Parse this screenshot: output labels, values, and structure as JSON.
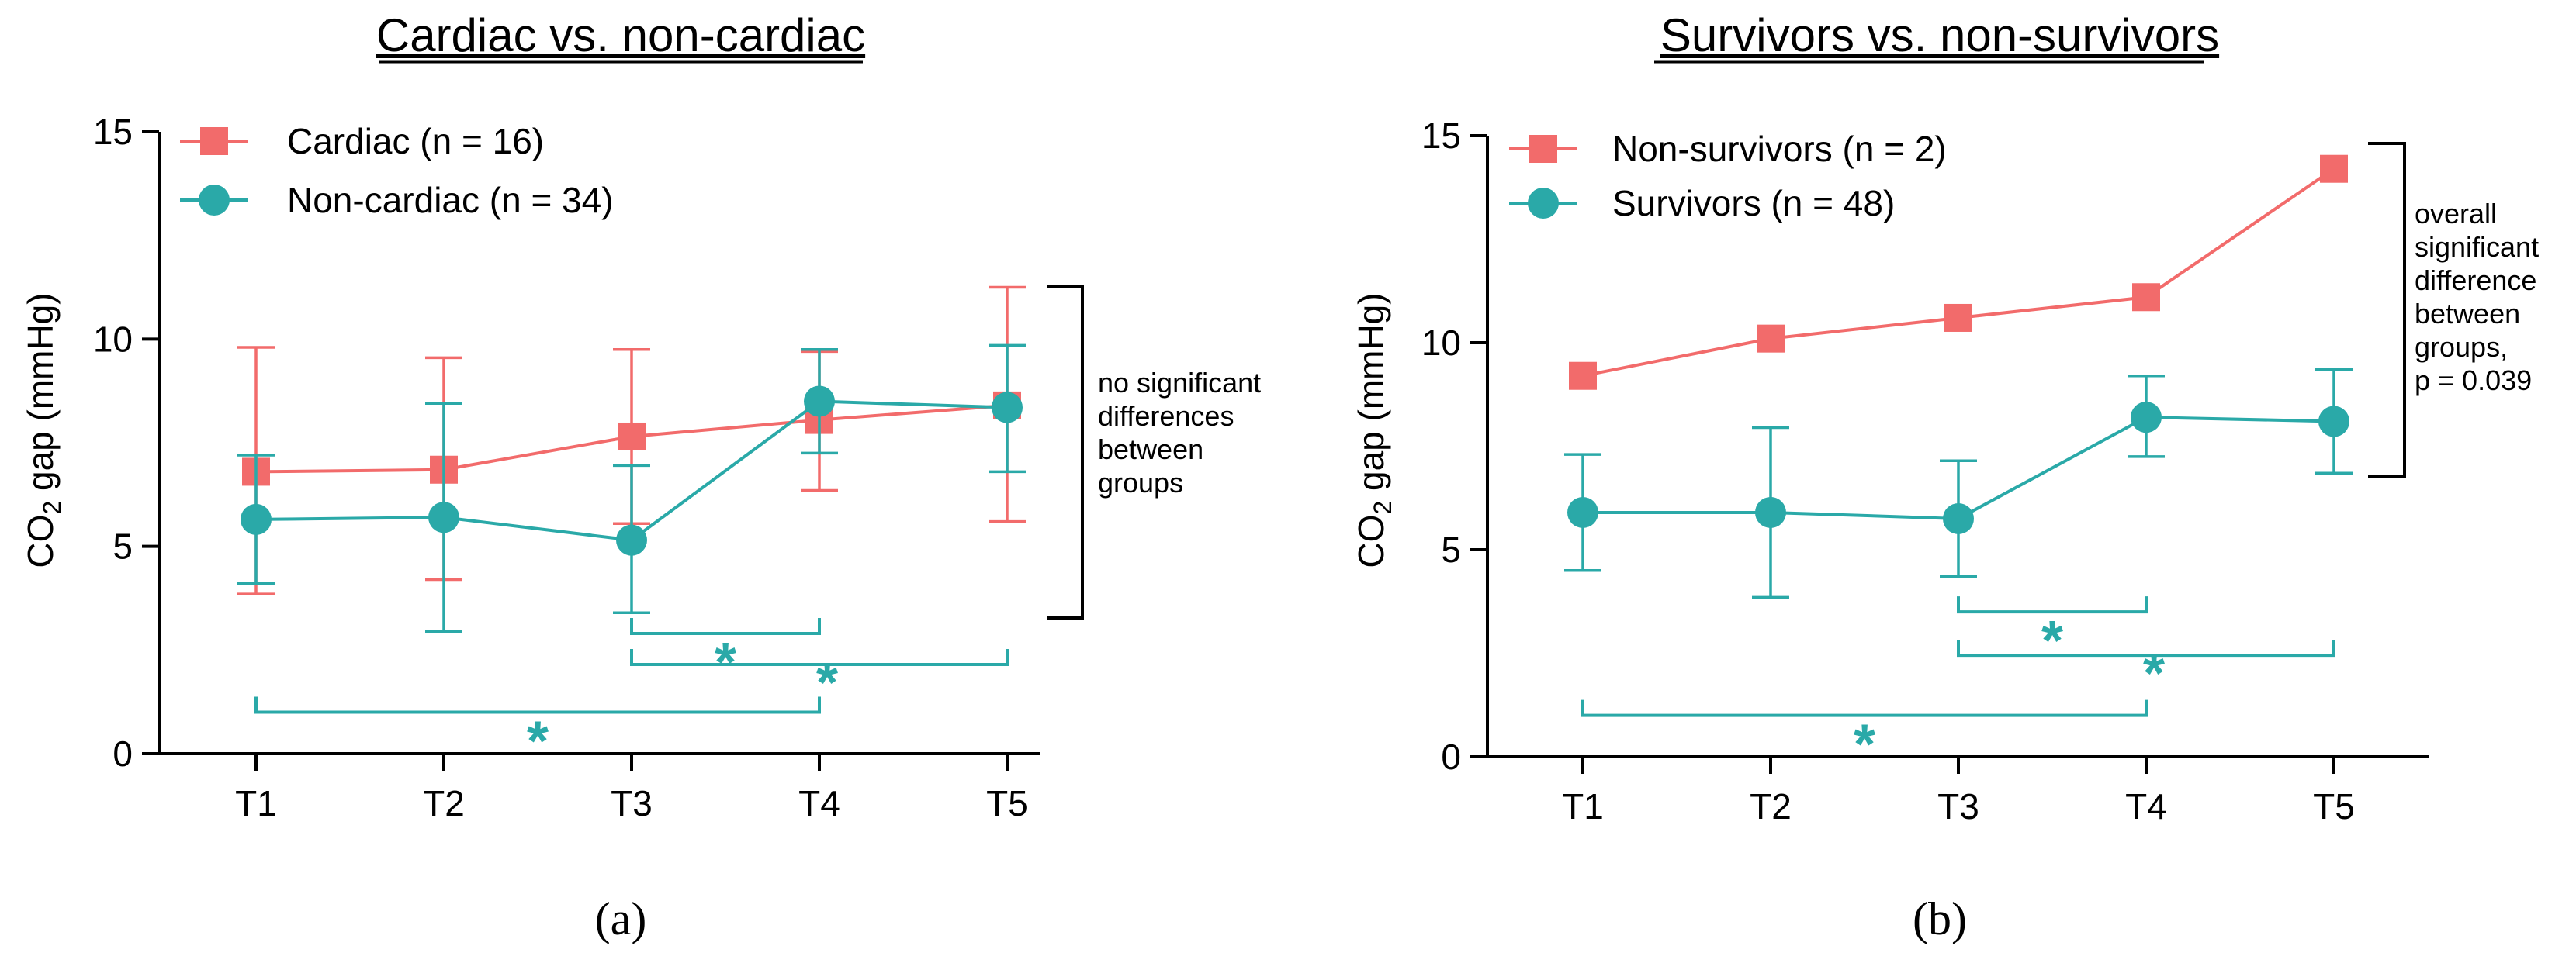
{
  "colors": {
    "red": "#f26b6b",
    "teal": "#2aa9a8",
    "axis": "#000000"
  },
  "chart_data": [
    {
      "type": "line",
      "panel_label": "(a)",
      "title": "Cardiac vs. non-cardiac",
      "ylabel_main": "CO",
      "ylabel_sub": "2",
      "ylabel_rest": " gap (mmHg)",
      "xlabel": "",
      "categories": [
        "T1",
        "T2",
        "T3",
        "T4",
        "T5"
      ],
      "ylim": [
        0,
        15
      ],
      "yticks": [
        "0",
        "5",
        "10",
        "15"
      ],
      "series": [
        {
          "name": "Cardiac (n = 16)",
          "color": "#f26b6b",
          "marker": "square",
          "values": [
            6.8,
            6.85,
            7.65,
            8.05,
            8.4
          ],
          "err_low": [
            3.85,
            4.2,
            5.55,
            6.35,
            5.6
          ],
          "err_high": [
            9.8,
            9.55,
            9.75,
            9.7,
            11.25
          ]
        },
        {
          "name": "Non-cardiac (n = 34)",
          "color": "#2aa9a8",
          "marker": "circle",
          "values": [
            5.65,
            5.7,
            5.15,
            8.5,
            8.35
          ],
          "err_low": [
            4.1,
            2.95,
            3.4,
            7.25,
            6.8
          ],
          "err_high": [
            7.2,
            8.45,
            6.95,
            9.75,
            9.85
          ]
        }
      ],
      "bracket_note": [
        "no significant",
        "differences",
        "between",
        "groups"
      ],
      "significance": [
        {
          "from": "T3",
          "to": "T4",
          "y": 2.9,
          "label": "*"
        },
        {
          "from": "T3",
          "to": "T5",
          "y": 2.15,
          "label": "*"
        },
        {
          "from": "T1",
          "to": "T4",
          "y": 1.0,
          "label": "*"
        }
      ]
    },
    {
      "type": "line",
      "panel_label": "(b)",
      "title": "Survivors vs. non-survivors",
      "ylabel_main": "CO",
      "ylabel_sub": "2",
      "ylabel_rest": " gap (mmHg)",
      "xlabel": "",
      "categories": [
        "T1",
        "T2",
        "T3",
        "T4",
        "T5"
      ],
      "ylim": [
        0,
        15
      ],
      "yticks": [
        "0",
        "5",
        "10",
        "15"
      ],
      "series": [
        {
          "name": "Non-survivors (n = 2)",
          "color": "#f26b6b",
          "marker": "square",
          "values": [
            9.2,
            10.1,
            10.6,
            11.1,
            14.2
          ],
          "err_low": null,
          "err_high": null
        },
        {
          "name": "Survivors (n = 48)",
          "color": "#2aa9a8",
          "marker": "circle",
          "values": [
            5.9,
            5.9,
            5.75,
            8.2,
            8.1
          ],
          "err_low": [
            4.5,
            3.85,
            4.35,
            7.25,
            6.85
          ],
          "err_high": [
            7.3,
            7.95,
            7.15,
            9.2,
            9.35
          ]
        }
      ],
      "bracket_note": [
        "overall",
        "significant",
        "difference",
        "between",
        "groups,",
        "p = 0.039"
      ],
      "significance": [
        {
          "from": "T3",
          "to": "T4",
          "y": 3.5,
          "label": "*"
        },
        {
          "from": "T3",
          "to": "T5",
          "y": 2.45,
          "label": "*"
        },
        {
          "from": "T1",
          "to": "T4",
          "y": 1.0,
          "label": "*"
        }
      ]
    }
  ]
}
